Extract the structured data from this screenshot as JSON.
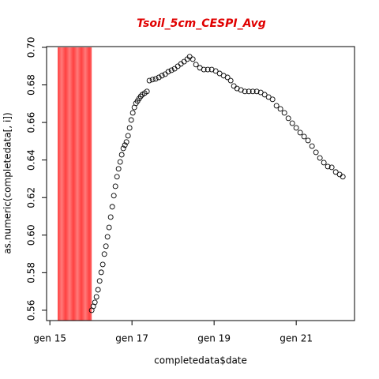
{
  "chart_data": {
    "type": "scatter",
    "title": "Tsoil_5cm_CESPI_Avg",
    "title_color": "#e00000",
    "x_label": "completedata$date",
    "y_label": "as.numeric(completedata[, i])",
    "xlim": [
      14.92,
      22.42
    ],
    "ylim": [
      0.5545,
      0.7004
    ],
    "xticks": [
      {
        "value": 15,
        "label": "gen 15"
      },
      {
        "value": 17,
        "label": "gen 17"
      },
      {
        "value": 19,
        "label": "gen 19"
      },
      {
        "value": 21,
        "label": "gen 21"
      }
    ],
    "yticks": [
      0.56,
      0.58,
      {
        "value": 0.6,
        "label": "0.60"
      },
      0.62,
      0.64,
      0.66,
      0.68,
      {
        "value": 0.7,
        "label": "0.70"
      }
    ],
    "highlight": {
      "x": [
        15.19,
        16.02
      ],
      "color": "#ff4040"
    },
    "color": "#000000",
    "x": [
      16.019,
      16.058,
      16.096,
      16.135,
      16.173,
      16.212,
      16.25,
      16.288,
      16.327,
      16.365,
      16.404,
      16.442,
      16.481,
      16.519,
      16.558,
      16.596,
      16.635,
      16.673,
      16.712,
      16.75,
      16.788,
      16.827,
      16.865,
      16.904,
      16.942,
      16.981,
      17.019,
      17.058,
      17.096,
      17.135,
      17.173,
      17.212,
      17.25,
      17.308,
      17.365,
      17.423,
      17.5,
      17.577,
      17.654,
      17.731,
      17.808,
      17.885,
      17.962,
      18.038,
      18.115,
      18.192,
      18.269,
      18.346,
      18.404,
      18.481,
      18.558,
      18.654,
      18.75,
      18.846,
      18.942,
      19.038,
      19.135,
      19.231,
      19.327,
      19.404,
      19.481,
      19.558,
      19.654,
      19.75,
      19.846,
      19.942,
      20.038,
      20.135,
      20.231,
      20.327,
      20.423,
      20.519,
      20.615,
      20.712,
      20.808,
      20.904,
      21.0,
      21.096,
      21.192,
      21.288,
      21.385,
      21.481,
      21.577,
      21.673,
      21.769,
      21.865,
      21.962,
      22.058,
      22.135
    ],
    "values": [
      0.56,
      0.5621,
      0.5642,
      0.5671,
      0.5709,
      0.5756,
      0.5802,
      0.5844,
      0.5899,
      0.5941,
      0.5991,
      0.6041,
      0.6096,
      0.6151,
      0.621,
      0.626,
      0.6311,
      0.6353,
      0.639,
      0.6428,
      0.6462,
      0.6479,
      0.6496,
      0.6529,
      0.6571,
      0.6613,
      0.6651,
      0.668,
      0.6702,
      0.6714,
      0.6727,
      0.6739,
      0.6748,
      0.6756,
      0.6765,
      0.6823,
      0.6828,
      0.6832,
      0.684,
      0.6849,
      0.6857,
      0.687,
      0.6878,
      0.6886,
      0.6899,
      0.6912,
      0.6924,
      0.6937,
      0.695,
      0.6937,
      0.6908,
      0.6891,
      0.6882,
      0.6882,
      0.6882,
      0.6874,
      0.6861,
      0.6849,
      0.684,
      0.6823,
      0.6794,
      0.6781,
      0.6773,
      0.6765,
      0.6765,
      0.6765,
      0.6765,
      0.676,
      0.6748,
      0.6735,
      0.6723,
      0.6689,
      0.6672,
      0.6651,
      0.6622,
      0.6596,
      0.6571,
      0.6546,
      0.6525,
      0.6504,
      0.6474,
      0.6441,
      0.6411,
      0.6386,
      0.6365,
      0.6361,
      0.6336,
      0.6323,
      0.6311
    ]
  }
}
